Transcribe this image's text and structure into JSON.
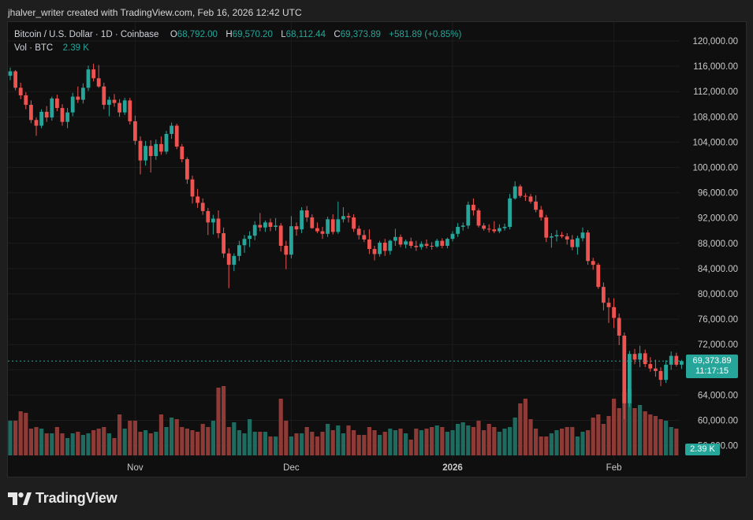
{
  "header": {
    "created_by": "jhalver_writer created with TradingView.com, Feb 16, 2026 12:42 UTC"
  },
  "legend": {
    "symbol": "Bitcoin / U.S. Dollar · 1D · Coinbase",
    "o_label": "O",
    "o_value": "68,792.00",
    "h_label": "H",
    "h_value": "69,570.20",
    "l_label": "L",
    "l_value": "68,112.44",
    "c_label": "C",
    "c_value": "69,373.89",
    "change": "+581.89 (+0.85%)",
    "vol_label": "Vol · BTC",
    "vol_value": "2.39 K"
  },
  "price_badge": {
    "price": "69,373.89",
    "countdown": "11:17:15"
  },
  "volume_badge": {
    "value": "2.39 K"
  },
  "brand": {
    "name": "TradingView"
  },
  "colors": {
    "up": "#26a69a",
    "down": "#ef5350",
    "up_volume": "#1f6b5f",
    "down_volume": "#8e3a37",
    "background": "#0f0f0f",
    "last_price_line": "#26a69a"
  },
  "chart_data": {
    "type": "candlestick",
    "symbol": "Bitcoin / U.S. Dollar",
    "interval": "1D",
    "exchange": "Coinbase",
    "ylim": [
      56000,
      122000
    ],
    "y_ticks": [
      "120,000.00",
      "116,000.00",
      "112,000.00",
      "108,000.00",
      "104,000.00",
      "100,000.00",
      "96,000.00",
      "92,000.00",
      "88,000.00",
      "84,000.00",
      "80,000.00",
      "76,000.00",
      "72,000.00",
      "68,000.00",
      "64,000.00",
      "60,000.00",
      "56,000.00"
    ],
    "x_ticks": [
      {
        "label": "Nov",
        "index": 24
      },
      {
        "label": "Dec",
        "index": 54
      },
      {
        "label": "2026",
        "index": 85
      },
      {
        "label": "Feb",
        "index": 116
      }
    ],
    "last_price": 69373.89,
    "ohlc": [
      [
        114500,
        115800,
        113800,
        115200
      ],
      [
        115200,
        115400,
        112200,
        112600
      ],
      [
        112600,
        113400,
        110800,
        111400
      ],
      [
        111400,
        111900,
        109200,
        109900
      ],
      [
        109900,
        110600,
        107000,
        107500
      ],
      [
        107500,
        107900,
        105000,
        106600
      ],
      [
        106600,
        109200,
        106200,
        108800
      ],
      [
        108800,
        109700,
        107200,
        107900
      ],
      [
        107900,
        111200,
        107400,
        110900
      ],
      [
        110900,
        111500,
        108900,
        109400
      ],
      [
        109400,
        110000,
        106600,
        107200
      ],
      [
        107200,
        109400,
        106200,
        108700
      ],
      [
        108700,
        111800,
        108100,
        111200
      ],
      [
        111200,
        112800,
        110200,
        110700
      ],
      [
        110700,
        113300,
        110100,
        112600
      ],
      [
        112600,
        116100,
        112100,
        115500
      ],
      [
        115500,
        116400,
        113600,
        114100
      ],
      [
        114100,
        116200,
        112600,
        112800
      ],
      [
        112800,
        113400,
        109200,
        109900
      ],
      [
        109900,
        111200,
        108100,
        110700
      ],
      [
        110700,
        111600,
        109600,
        110200
      ],
      [
        110200,
        110800,
        108000,
        108700
      ],
      [
        108700,
        111000,
        108300,
        110600
      ],
      [
        110600,
        111000,
        106800,
        107300
      ],
      [
        107300,
        108200,
        103600,
        104200
      ],
      [
        104200,
        104900,
        98900,
        101100
      ],
      [
        101100,
        104200,
        100300,
        103400
      ],
      [
        103400,
        104300,
        99200,
        101800
      ],
      [
        101800,
        104400,
        101200,
        103700
      ],
      [
        103700,
        104900,
        102000,
        102500
      ],
      [
        102500,
        105800,
        102100,
        105300
      ],
      [
        105300,
        107100,
        104500,
        106600
      ],
      [
        106600,
        106900,
        102900,
        103300
      ],
      [
        103300,
        103700,
        100800,
        101300
      ],
      [
        101300,
        101600,
        97400,
        98100
      ],
      [
        98100,
        98700,
        94300,
        95400
      ],
      [
        95400,
        96600,
        93600,
        94400
      ],
      [
        94400,
        95100,
        92500,
        93100
      ],
      [
        93100,
        93600,
        89300,
        91300
      ],
      [
        91300,
        92500,
        89400,
        91900
      ],
      [
        91900,
        93200,
        88800,
        89600
      ],
      [
        89600,
        90500,
        85700,
        86400
      ],
      [
        86400,
        87200,
        80900,
        84600
      ],
      [
        84600,
        86400,
        83600,
        86000
      ],
      [
        86000,
        88400,
        85200,
        87700
      ],
      [
        87700,
        89300,
        86500,
        88700
      ],
      [
        88700,
        89900,
        87400,
        89200
      ],
      [
        89200,
        91500,
        88500,
        90900
      ],
      [
        90900,
        92800,
        89900,
        90500
      ],
      [
        90500,
        91600,
        89800,
        91300
      ],
      [
        91300,
        91900,
        89900,
        90600
      ],
      [
        90600,
        92000,
        90000,
        90800
      ],
      [
        90800,
        91200,
        86700,
        87600
      ],
      [
        87600,
        88400,
        83900,
        86200
      ],
      [
        86200,
        92300,
        85600,
        90700
      ],
      [
        90700,
        91300,
        89200,
        90200
      ],
      [
        90200,
        93700,
        89600,
        93200
      ],
      [
        93200,
        93900,
        91400,
        92100
      ],
      [
        92100,
        92600,
        90300,
        90400
      ],
      [
        90400,
        91300,
        89600,
        89900
      ],
      [
        89900,
        90600,
        88700,
        89500
      ],
      [
        89500,
        92200,
        89000,
        91800
      ],
      [
        91800,
        92600,
        89400,
        89800
      ],
      [
        89800,
        94600,
        89500,
        91800
      ],
      [
        91800,
        93700,
        91300,
        92300
      ],
      [
        92300,
        92800,
        91300,
        92100
      ],
      [
        92100,
        92600,
        89800,
        90300
      ],
      [
        90300,
        90800,
        88600,
        89300
      ],
      [
        89300,
        90100,
        88200,
        88600
      ],
      [
        88600,
        90200,
        86300,
        87100
      ],
      [
        87100,
        87600,
        85300,
        86300
      ],
      [
        86300,
        88400,
        85900,
        88100
      ],
      [
        88100,
        88700,
        86000,
        86800
      ],
      [
        86800,
        88600,
        86200,
        88400
      ],
      [
        88400,
        90300,
        87600,
        89000
      ],
      [
        89000,
        89400,
        87400,
        87800
      ],
      [
        87800,
        88600,
        87200,
        88300
      ],
      [
        88300,
        88900,
        87200,
        87600
      ],
      [
        87600,
        88400,
        86800,
        87400
      ],
      [
        87400,
        88300,
        87000,
        87900
      ],
      [
        87900,
        88600,
        87200,
        87600
      ],
      [
        87600,
        88200,
        87000,
        87500
      ],
      [
        87500,
        88700,
        87300,
        88400
      ],
      [
        88400,
        88800,
        87200,
        87600
      ],
      [
        87600,
        88900,
        87200,
        88700
      ],
      [
        88700,
        89900,
        88300,
        89500
      ],
      [
        89500,
        91200,
        89000,
        90600
      ],
      [
        90600,
        91300,
        90000,
        90800
      ],
      [
        90800,
        94600,
        90300,
        94100
      ],
      [
        94100,
        95100,
        92400,
        93200
      ],
      [
        93200,
        93500,
        90500,
        90800
      ],
      [
        90800,
        91200,
        90000,
        90300
      ],
      [
        90300,
        91000,
        89700,
        90200
      ],
      [
        90200,
        91500,
        89600,
        89900
      ],
      [
        89900,
        91000,
        89600,
        90400
      ],
      [
        90400,
        91100,
        90000,
        90600
      ],
      [
        90600,
        95800,
        90200,
        95100
      ],
      [
        95100,
        97800,
        94900,
        97000
      ],
      [
        97000,
        97300,
        95200,
        95500
      ],
      [
        95500,
        95900,
        94700,
        95400
      ],
      [
        95400,
        95800,
        94300,
        94600
      ],
      [
        94600,
        95600,
        92900,
        93300
      ],
      [
        93300,
        93900,
        91600,
        92100
      ],
      [
        92100,
        92500,
        88200,
        88900
      ],
      [
        88900,
        89600,
        87300,
        89100
      ],
      [
        89100,
        90100,
        88300,
        89300
      ],
      [
        89300,
        89800,
        88800,
        89100
      ],
      [
        89100,
        89600,
        87800,
        88600
      ],
      [
        88600,
        89300,
        86900,
        87400
      ],
      [
        87400,
        89200,
        86200,
        88800
      ],
      [
        88800,
        90500,
        88300,
        89700
      ],
      [
        89700,
        90100,
        84600,
        85200
      ],
      [
        85200,
        85700,
        83800,
        84600
      ],
      [
        84600,
        84900,
        80800,
        81100
      ],
      [
        81100,
        81800,
        77400,
        78600
      ],
      [
        78600,
        79400,
        75400,
        77900
      ],
      [
        77900,
        79300,
        74600,
        76200
      ],
      [
        76200,
        76900,
        71900,
        73400
      ],
      [
        73400,
        73900,
        60200,
        62700
      ],
      [
        62700,
        71000,
        62100,
        70500
      ],
      [
        70500,
        71300,
        68900,
        69600
      ],
      [
        69600,
        71800,
        68400,
        70600
      ],
      [
        70600,
        71200,
        68400,
        68900
      ],
      [
        68900,
        70000,
        67700,
        68200
      ],
      [
        68200,
        69600,
        66900,
        67800
      ],
      [
        67800,
        68400,
        65400,
        66400
      ],
      [
        66400,
        69500,
        65900,
        68800
      ],
      [
        68800,
        70900,
        68000,
        70200
      ],
      [
        70200,
        70700,
        68500,
        68800
      ],
      [
        68800,
        69570,
        68112,
        69374
      ]
    ],
    "volume": [
      22,
      22,
      28,
      27,
      17,
      18,
      17,
      14,
      14,
      18,
      14,
      11,
      14,
      15,
      13,
      14,
      16,
      17,
      18,
      14,
      11,
      26,
      17,
      22,
      22,
      15,
      16,
      14,
      15,
      26,
      18,
      24,
      23,
      18,
      17,
      16,
      15,
      20,
      18,
      22,
      43,
      44,
      18,
      21,
      16,
      14,
      23,
      15,
      15,
      15,
      12,
      12,
      36,
      22,
      12,
      14,
      14,
      18,
      15,
      12,
      15,
      20,
      16,
      19,
      14,
      19,
      16,
      13,
      13,
      18,
      16,
      13,
      15,
      17,
      16,
      17,
      14,
      10,
      17,
      16,
      17,
      18,
      19,
      18,
      15,
      16,
      20,
      21,
      19,
      18,
      22,
      16,
      20,
      18,
      15,
      17,
      18,
      24,
      33,
      36,
      23,
      17,
      12,
      12,
      14,
      16,
      17,
      18,
      18,
      12,
      15,
      16,
      24,
      26,
      20,
      25,
      36,
      30,
      40,
      42,
      30,
      32,
      28,
      26,
      25,
      23,
      22,
      18,
      17
    ],
    "volume_current": "2.39K"
  }
}
